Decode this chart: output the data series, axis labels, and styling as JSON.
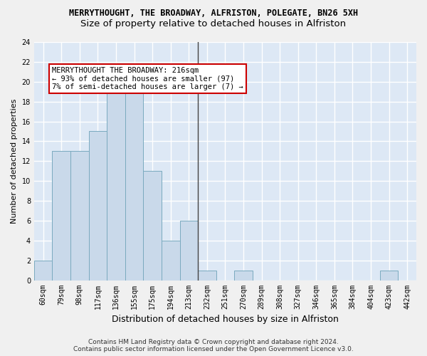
{
  "title": "MERRYTHOUGHT, THE BROADWAY, ALFRISTON, POLEGATE, BN26 5XH",
  "subtitle": "Size of property relative to detached houses in Alfriston",
  "xlabel": "Distribution of detached houses by size in Alfriston",
  "ylabel": "Number of detached properties",
  "categories": [
    "60sqm",
    "79sqm",
    "98sqm",
    "117sqm",
    "136sqm",
    "155sqm",
    "175sqm",
    "194sqm",
    "213sqm",
    "232sqm",
    "251sqm",
    "270sqm",
    "289sqm",
    "308sqm",
    "327sqm",
    "346sqm",
    "365sqm",
    "384sqm",
    "404sqm",
    "423sqm",
    "442sqm"
  ],
  "values": [
    2,
    13,
    13,
    15,
    19,
    19,
    11,
    4,
    6,
    1,
    0,
    1,
    0,
    0,
    0,
    0,
    0,
    0,
    0,
    1,
    0
  ],
  "bar_color": "#c9d9ea",
  "bar_edge_color": "#7aaabf",
  "vline_x_index": 8.5,
  "vline_color": "#444444",
  "annotation_text": "MERRYTHOUGHT THE BROADWAY: 216sqm\n← 93% of detached houses are smaller (97)\n7% of semi-detached houses are larger (7) →",
  "annotation_box_facecolor": "#ffffff",
  "annotation_box_edgecolor": "#cc0000",
  "ylim": [
    0,
    24
  ],
  "yticks": [
    0,
    2,
    4,
    6,
    8,
    10,
    12,
    14,
    16,
    18,
    20,
    22,
    24
  ],
  "axes_bg_color": "#dde8f5",
  "fig_bg_color": "#f0f0f0",
  "grid_color": "#ffffff",
  "title_fontsize": 8.5,
  "subtitle_fontsize": 9.5,
  "ylabel_fontsize": 8,
  "xlabel_fontsize": 9,
  "tick_fontsize": 7,
  "annotation_fontsize": 7.5,
  "footer_text": "Contains HM Land Registry data © Crown copyright and database right 2024.\nContains public sector information licensed under the Open Government Licence v3.0.",
  "footer_fontsize": 6.5
}
